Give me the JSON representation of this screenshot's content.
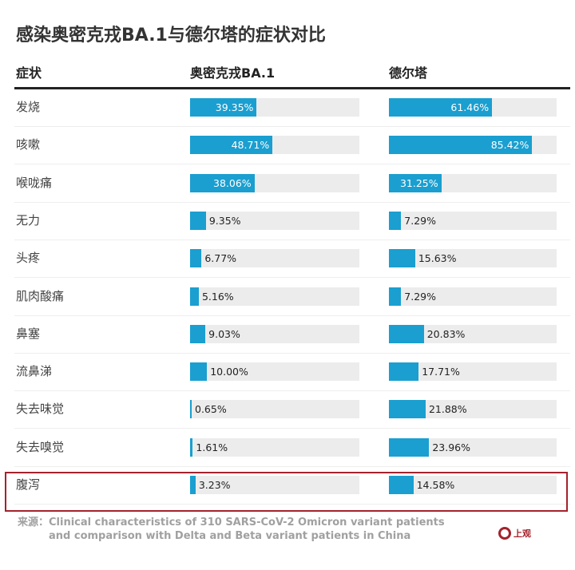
{
  "chart_data": {
    "type": "bar",
    "title": "感染奥密克戎BA.1与德尔塔的症状对比",
    "columns": [
      "症状",
      "奥密克戎BA.1",
      "德尔塔"
    ],
    "categories": [
      "发烧",
      "咳嗽",
      "喉咙痛",
      "无力",
      "头疼",
      "肌肉酸痛",
      "鼻塞",
      "流鼻涕",
      "失去味觉",
      "失去嗅觉",
      "腹泻"
    ],
    "series": [
      {
        "name": "奥密克戎BA.1",
        "values": [
          39.35,
          48.71,
          38.06,
          9.35,
          6.77,
          5.16,
          9.03,
          10.0,
          0.65,
          1.61,
          3.23
        ]
      },
      {
        "name": "德尔塔",
        "values": [
          61.46,
          85.42,
          31.25,
          7.29,
          15.63,
          7.29,
          20.83,
          17.71,
          21.88,
          23.96,
          14.58
        ]
      }
    ],
    "xlim": [
      0,
      100
    ],
    "highlighted_category": "腹泻",
    "colors": {
      "bar": "#1a9fd0",
      "track": "#ececec",
      "highlight": "#a4222c"
    }
  },
  "source": {
    "label": "来源：",
    "text": "Clinical characteristics of 310 SARS-CoV-2 Omicron variant patients and comparison with Delta and Beta variant patients in China"
  },
  "logo": {
    "text": "上观"
  }
}
